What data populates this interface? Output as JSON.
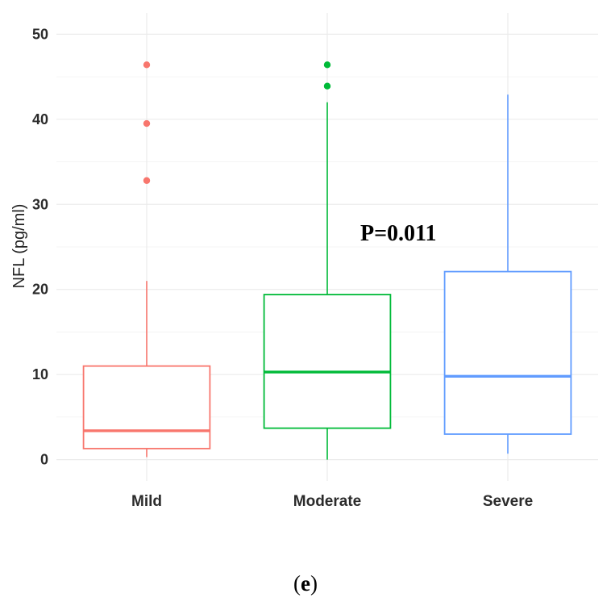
{
  "chart_data": {
    "type": "box",
    "ylabel": "NFL (pg/ml)",
    "xlabel": "",
    "ylim": [
      -2.5,
      52.5
    ],
    "yticks": [
      0,
      10,
      20,
      30,
      40,
      50
    ],
    "categories": [
      "Mild",
      "Moderate",
      "Severe"
    ],
    "boxes": [
      {
        "name": "Mild",
        "color": "#F8766D",
        "whisker_low": 0.3,
        "q1": 1.3,
        "median": 3.4,
        "q3": 11.0,
        "whisker_high": 21.0,
        "outliers": [
          32.8,
          39.5,
          46.4
        ]
      },
      {
        "name": "Moderate",
        "color": "#00BA38",
        "whisker_low": 0.0,
        "q1": 3.7,
        "median": 10.3,
        "q3": 19.4,
        "whisker_high": 42.0,
        "outliers": [
          43.9,
          46.4
        ]
      },
      {
        "name": "Severe",
        "color": "#619CFF",
        "whisker_low": 0.7,
        "q1": 3.0,
        "median": 9.8,
        "q3": 22.1,
        "whisker_high": 42.9,
        "outliers": []
      }
    ],
    "annotation": {
      "text": "P=0.011",
      "x": "Moderate-Severe",
      "y": 27
    }
  },
  "caption": {
    "open": "(",
    "letter": "e",
    "close": ")"
  }
}
